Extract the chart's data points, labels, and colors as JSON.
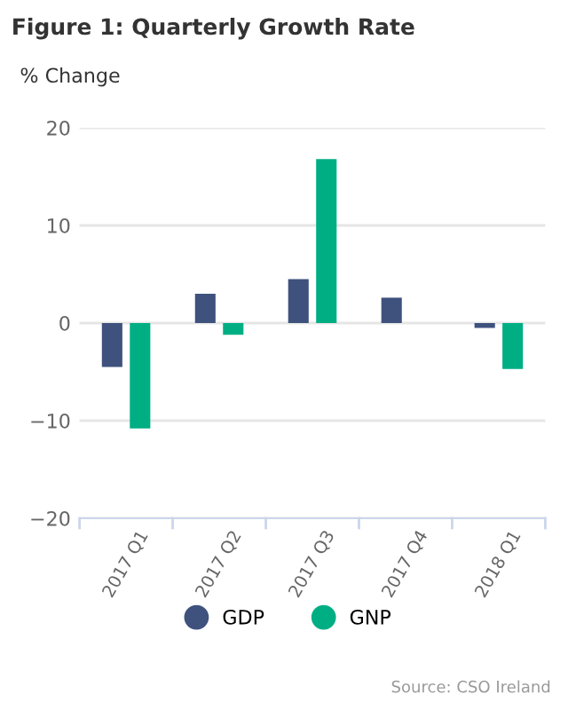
{
  "chart_data": {
    "type": "bar",
    "title": "Figure 1: Quarterly Growth Rate",
    "ylabel": "% Change",
    "categories": [
      "2017 Q1",
      "2017 Q2",
      "2017 Q3",
      "2017 Q4",
      "2018 Q1"
    ],
    "series": [
      {
        "name": "GDP",
        "color": "#3f527e",
        "values": [
          -4.5,
          3.0,
          4.5,
          2.6,
          -0.5
        ]
      },
      {
        "name": "GNP",
        "color": "#00ae84",
        "values": [
          -10.8,
          -1.2,
          16.8,
          0,
          -4.7
        ]
      }
    ],
    "ylim": [
      -20,
      20
    ],
    "yticks": [
      {
        "value": -20,
        "label": "−20"
      },
      {
        "value": -10,
        "label": "−10"
      },
      0,
      10,
      20
    ],
    "grid": "y",
    "legend": "bottom",
    "annotations": [
      "Source: CSO Ireland"
    ]
  }
}
